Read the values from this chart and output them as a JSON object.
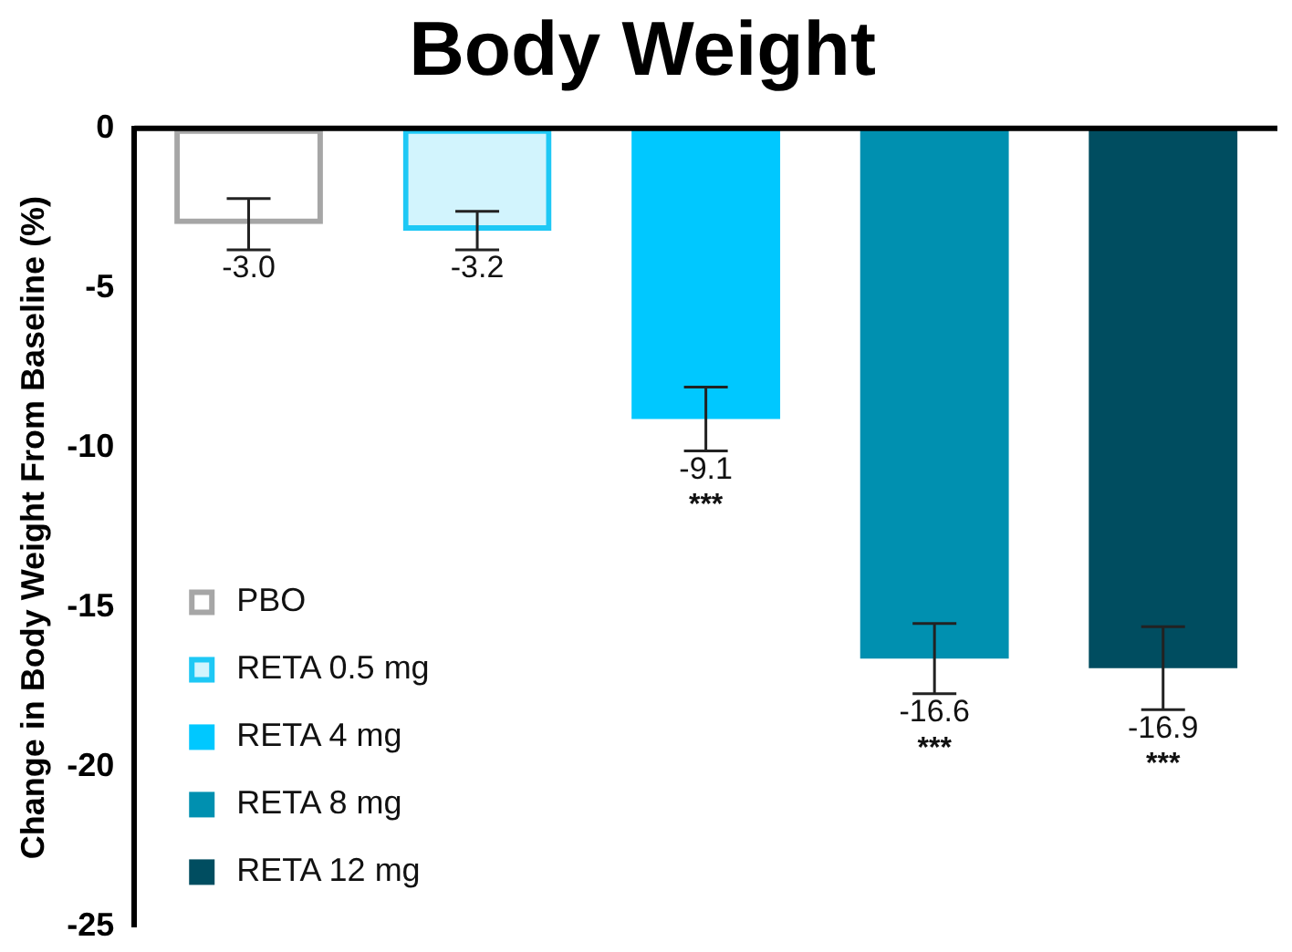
{
  "chart_data": {
    "type": "bar",
    "title": "Body Weight",
    "ylabel": "Change in Body Weight From Baseline (%)",
    "categories": [
      null,
      null,
      null,
      null,
      null
    ],
    "series": [
      {
        "name": "PBO",
        "color": "#a6a6a6",
        "values": [
          -3.0,
          null,
          null,
          null,
          null
        ],
        "errors": [
          0.8,
          null,
          null,
          null,
          null
        ],
        "value_labels": [
          "-3.0",
          null,
          null,
          null,
          null
        ]
      },
      {
        "name": "RETA 0.5 mg",
        "color": "#1ec8f5",
        "values": [
          null,
          -3.2,
          null,
          null,
          null
        ],
        "errors": [
          null,
          0.6,
          null,
          null,
          null
        ],
        "value_labels": [
          null,
          "-3.2",
          null,
          null,
          null
        ]
      },
      {
        "name": "RETA 4 mg",
        "color": "#00c8ff",
        "values": [
          null,
          null,
          -9.1,
          null,
          null
        ],
        "errors": [
          null,
          null,
          1.0,
          null,
          null
        ],
        "value_labels": [
          null,
          null,
          "-9.1",
          null,
          null
        ]
      },
      {
        "name": "RETA 8 mg",
        "color": "#0090b0",
        "values": [
          null,
          null,
          null,
          -16.6,
          null
        ],
        "errors": [
          null,
          null,
          null,
          1.1,
          null
        ],
        "value_labels": [
          null,
          null,
          null,
          "-16.6",
          null
        ]
      },
      {
        "name": "RETA 12 mg",
        "color": "#004d60",
        "values": [
          null,
          null,
          null,
          null,
          -16.9
        ],
        "errors": [
          null,
          null,
          null,
          null,
          1.3
        ],
        "value_labels": [
          null,
          null,
          null,
          null,
          "-16.9"
        ]
      }
    ],
    "annotations": [
      {
        "text": "***",
        "y": -10.1
      },
      {
        "text": "***",
        "y": -17.7
      },
      {
        "text": "***",
        "y": -18.2
      }
    ],
    "ylim": [
      -25,
      0
    ],
    "yticks": [
      -25,
      -20,
      -15,
      -10,
      -5,
      0
    ],
    "grid": false,
    "legend": "bottom left"
  }
}
